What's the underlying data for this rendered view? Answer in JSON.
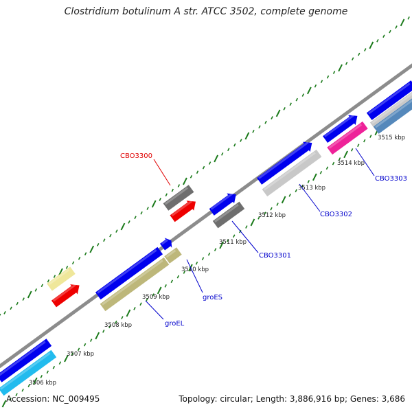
{
  "title": "Clostridium botulinum A str. ATCC 3502, complete genome",
  "accession": "Accession: NC_009495",
  "topology": "Topology: circular; Length: 3,886,916 bp; Genes: 3,686",
  "kbp_labels": [
    "3506 kbp",
    "3507 kbp",
    "3508 kbp",
    "3509 kbp",
    "3510 kbp",
    "3511 kbp",
    "3512 kbp",
    "3513 kbp",
    "3514 kbp",
    "3515 kbp"
  ],
  "gene_labels": [
    {
      "text": "CBO3300",
      "color": "#e00000"
    },
    {
      "text": "CBO3301",
      "color": "#0000cc"
    },
    {
      "text": "CBO3302",
      "color": "#0000cc"
    },
    {
      "text": "CBO3303",
      "color": "#0000cc"
    },
    {
      "text": "groES",
      "color": "#0000cc"
    },
    {
      "text": "groEL",
      "color": "#0000cc"
    }
  ],
  "colors": {
    "backbone": "#8c8c8c",
    "tick": "#1a7a1a",
    "cds_forward": "#0000ee",
    "cds_reverse_red": "#ee0000",
    "gray_feature": "#6e6e6e",
    "light_gray_feature": "#c8c8c8",
    "khaki_feature": "#bdb77a",
    "pale_yellow_feature": "#efe79a",
    "magenta_feature": "#ee2299",
    "cyan_feature": "#22bbee",
    "steel_feature": "#5588bb"
  }
}
